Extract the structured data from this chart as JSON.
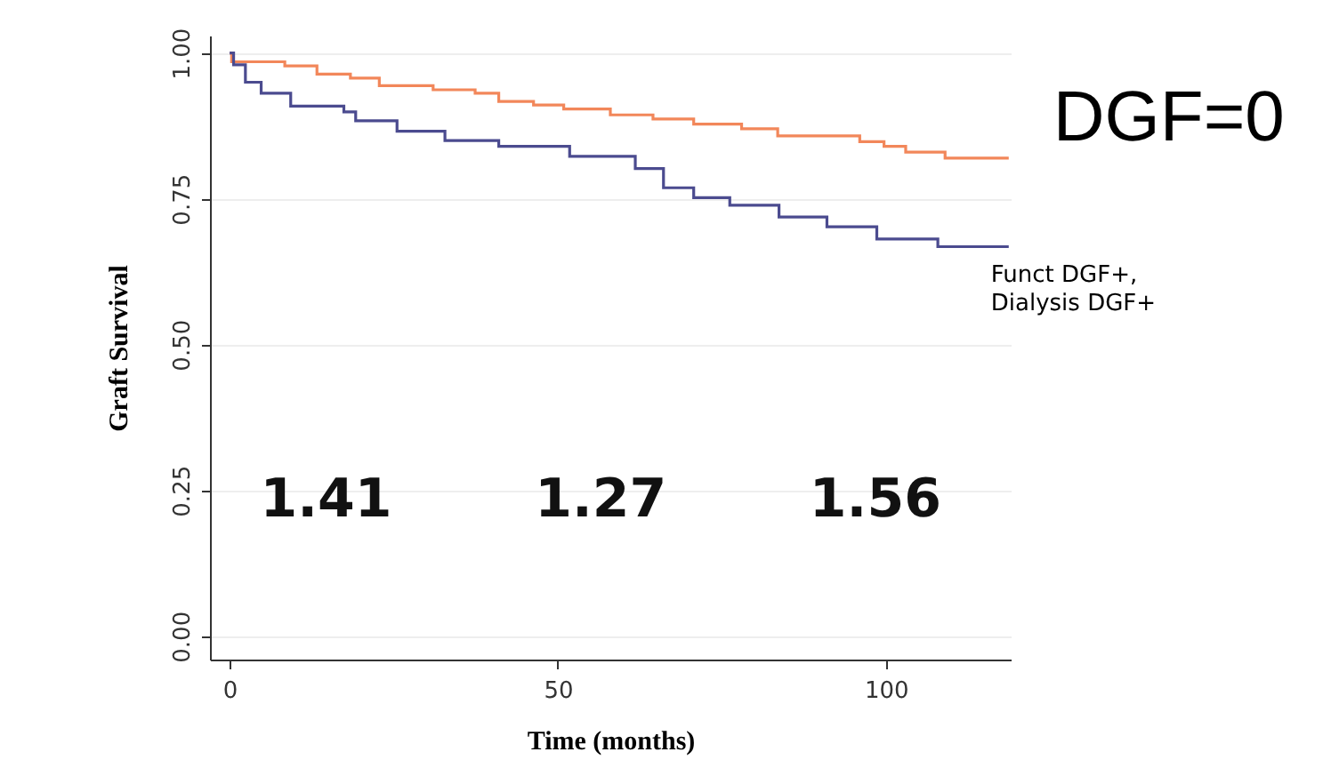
{
  "chart_data": {
    "type": "step",
    "xlabel": "Time (months)",
    "ylabel": "Graft Survival",
    "xlim": [
      -3,
      119
    ],
    "ylim": [
      -0.04,
      1.03
    ],
    "xticks": [
      0,
      50,
      100
    ],
    "yticks": [
      {
        "value": 0,
        "label": "0.00"
      },
      0.25,
      {
        "value": 0.5,
        "label": "0.50"
      },
      0.75,
      {
        "value": 1,
        "label": "1.00"
      }
    ],
    "grid": "y",
    "annotations": [
      "1.41",
      "1.27",
      "1.56"
    ],
    "series": [
      {
        "name": "DGF=0",
        "color": "#f2875a",
        "x": [
          0,
          0.3,
          8.4,
          13.3,
          18.4,
          22.8,
          31,
          37.4,
          41,
          46.3,
          50.9,
          58,
          64.5,
          70.7,
          78,
          83.5,
          96,
          99.7,
          103,
          109,
          118.7
        ],
        "values": [
          1,
          0.985,
          0.978,
          0.964,
          0.957,
          0.944,
          0.937,
          0.931,
          0.917,
          0.911,
          0.904,
          0.894,
          0.887,
          0.878,
          0.87,
          0.858,
          0.848,
          0.84,
          0.83,
          0.82,
          0.82
        ]
      },
      {
        "name": "Funct DGF+, Dialysis DGF+",
        "color": "#4b4b8f",
        "x": [
          0,
          0.6,
          2.4,
          4.8,
          9.3,
          17.4,
          19.2,
          25.5,
          32.8,
          41,
          51.8,
          61.8,
          66.1,
          70.7,
          76.2,
          83.7,
          91,
          98.6,
          107.9,
          118.7
        ],
        "values": [
          1,
          0.98,
          0.95,
          0.931,
          0.909,
          0.899,
          0.884,
          0.866,
          0.85,
          0.84,
          0.823,
          0.802,
          0.769,
          0.752,
          0.739,
          0.719,
          0.702,
          0.681,
          0.668,
          0.668
        ]
      }
    ]
  }
}
